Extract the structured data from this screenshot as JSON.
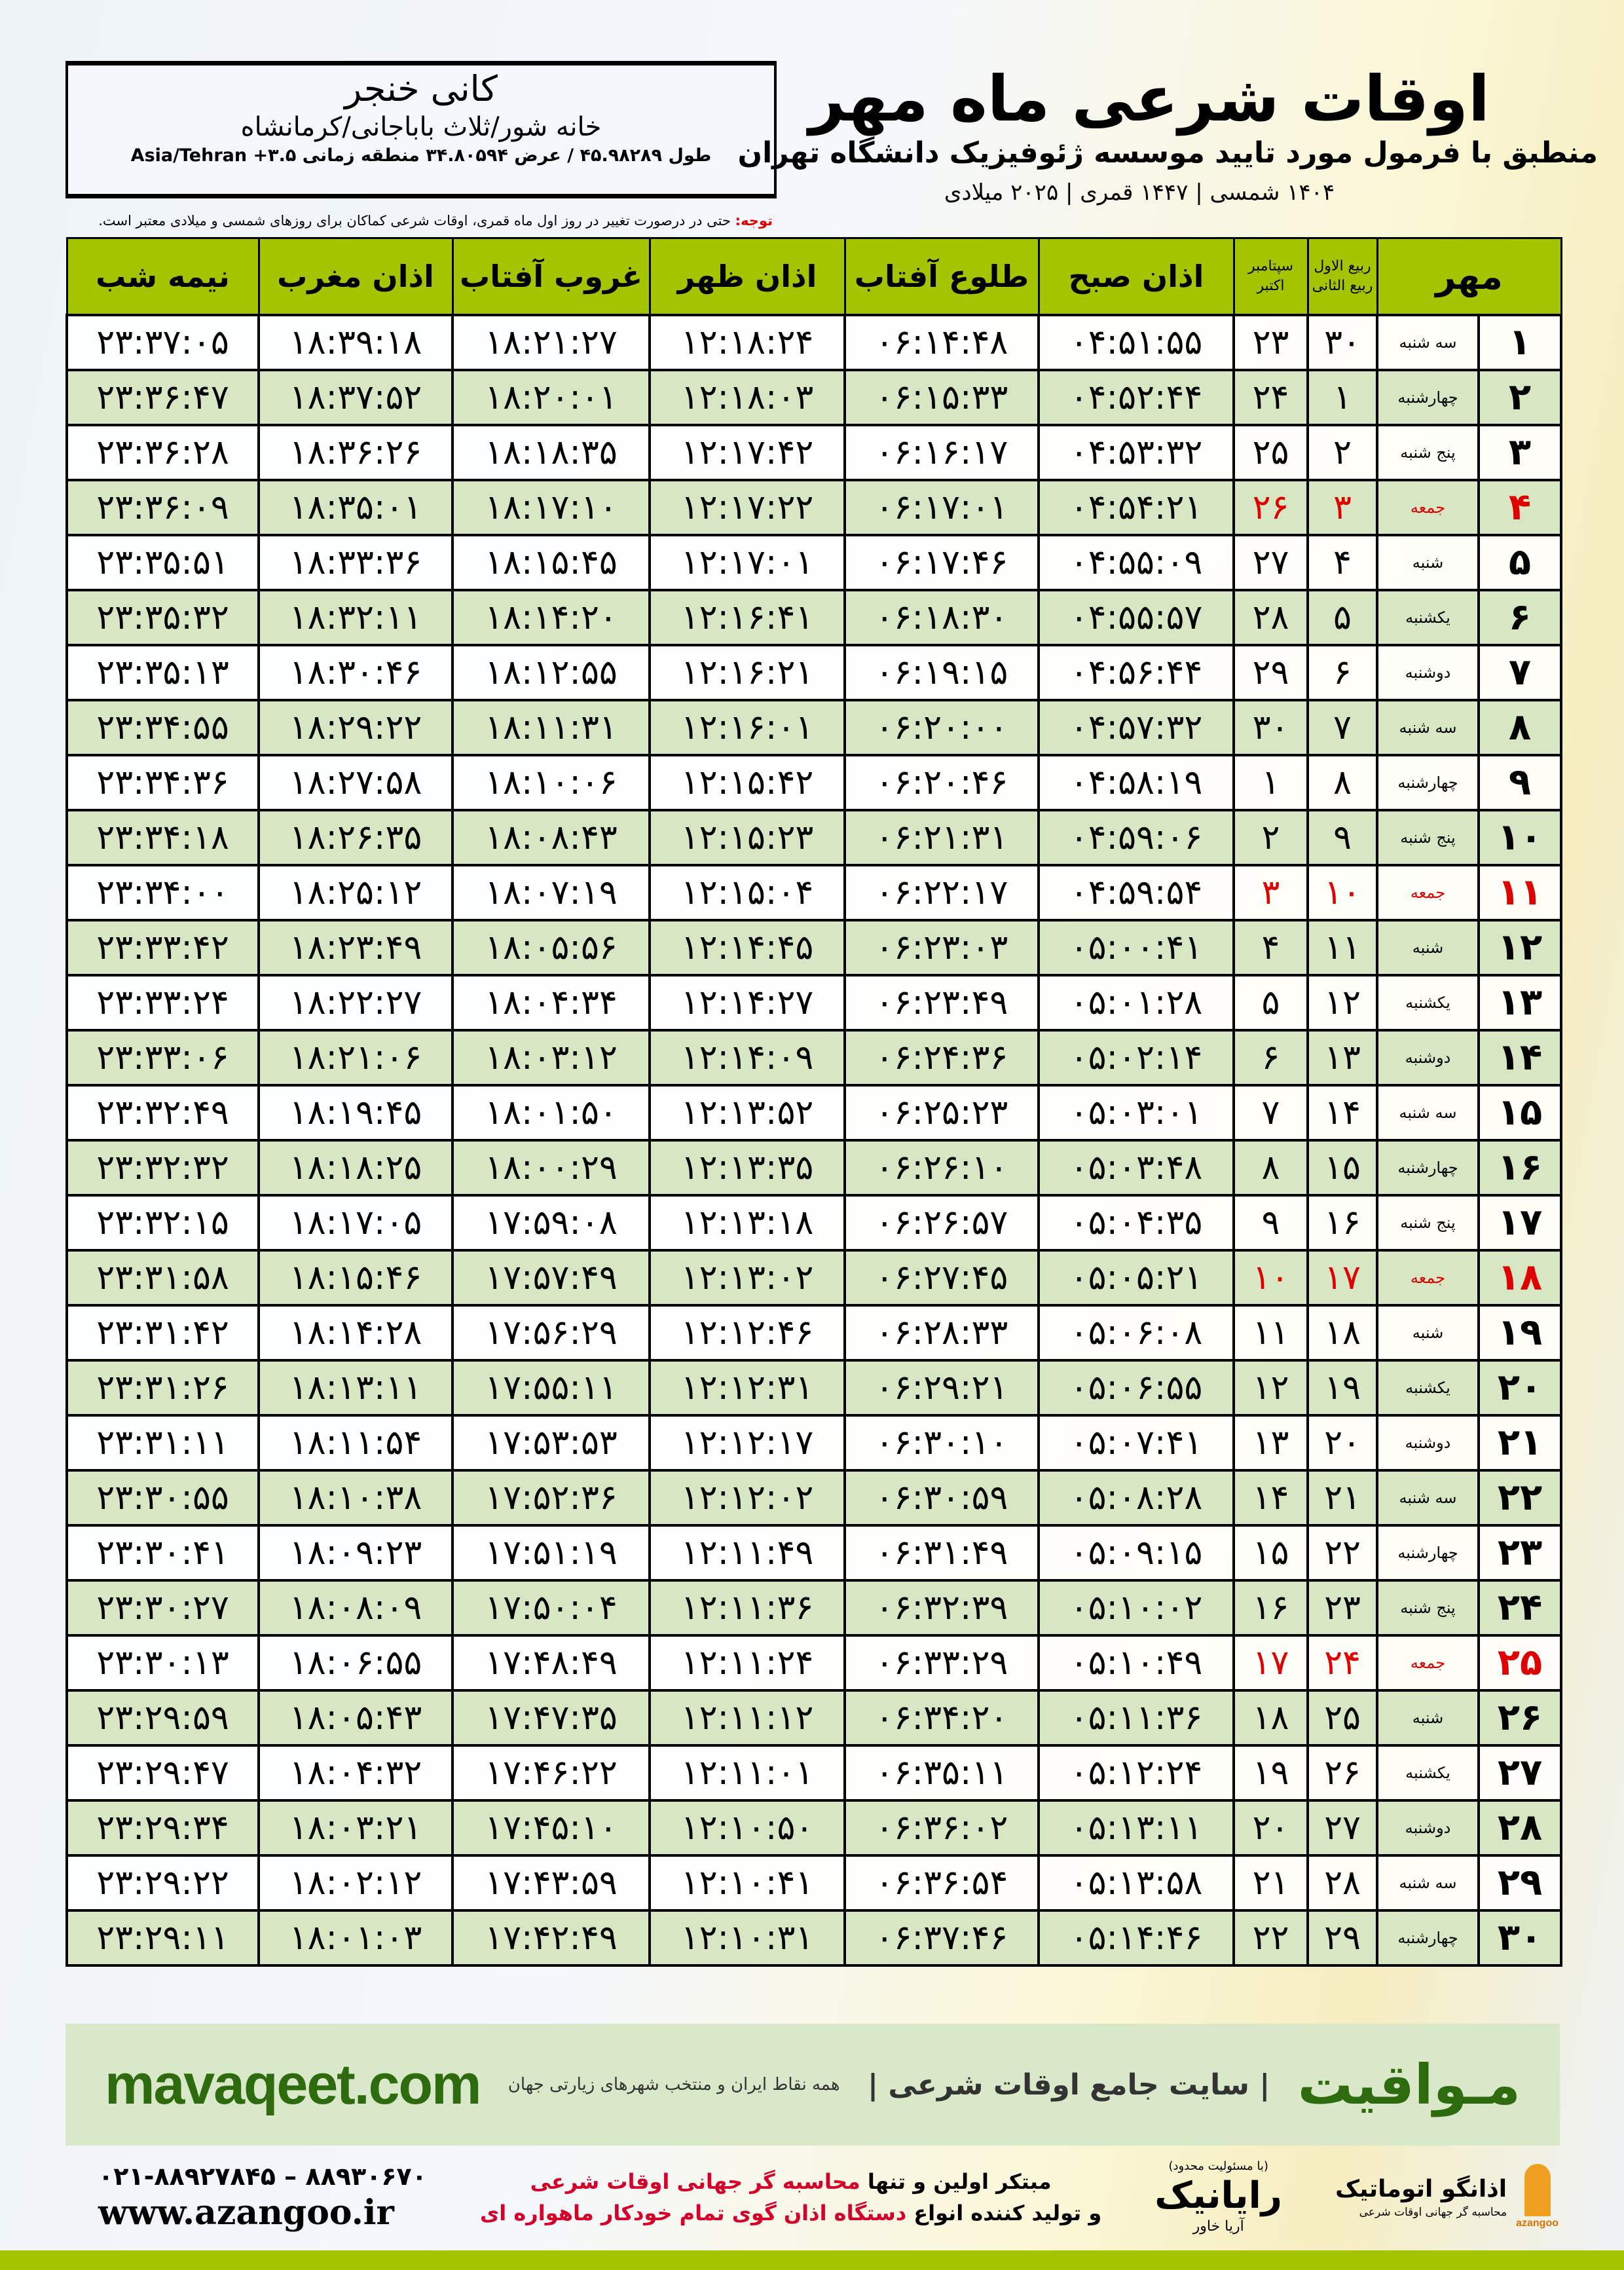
{
  "location": {
    "name": "کانی خنجر",
    "address": "خانه شور/ثلاث باباجانی/کرمانشاه",
    "coordinates": "طول ۴۵.۹۸۲۸۹ / عرض ۳۴.۸۰۵۹۴ منطقه زمانی Asia/Tehran +۳.۵"
  },
  "header": {
    "title": "اوقات شرعی ماه مهر",
    "subtitle": "منطبق با فرمول مورد تایید موسسه ژئوفیزیک دانشگاه تهران",
    "years": "۱۴۰۴ شمسی | ۱۴۴۷ قمری | ۲۰۲۵ میلادی"
  },
  "note": {
    "label": "توجه:",
    "text": " حتی در درصورت تغییر در روز اول ماه قمری، اوقات شرعی کماکان برای روزهای شمسی و میلادی معتبر است."
  },
  "table": {
    "columns": {
      "month": "مهر",
      "hijri_top": "ربیع الاول",
      "hijri_bottom": "ربیع الثانی",
      "greg_top": "سپتامبر",
      "greg_bottom": "اکتبر",
      "fajr": "اذان صبح",
      "sunrise": "طلوع آفتاب",
      "dhuhr": "اذان ظهر",
      "sunset": "غروب آفتاب",
      "maghrib": "اذان مغرب",
      "midnight": "نیمه شب"
    },
    "friday_color": "#e00000",
    "header_color": "#a4c400",
    "rows": [
      {
        "day": "۱",
        "weekday": "سه شنبه",
        "hijri": "۳۰",
        "greg": "۲۳",
        "fajr": "۰۴:۵۱:۵۵",
        "sunrise": "۰۶:۱۴:۴۸",
        "dhuhr": "۱۲:۱۸:۲۴",
        "sunset": "۱۸:۲۱:۲۷",
        "maghrib": "۱۸:۳۹:۱۸",
        "midnight": "۲۳:۳۷:۰۵",
        "friday": false
      },
      {
        "day": "۲",
        "weekday": "چهارشنبه",
        "hijri": "۱",
        "greg": "۲۴",
        "fajr": "۰۴:۵۲:۴۴",
        "sunrise": "۰۶:۱۵:۳۳",
        "dhuhr": "۱۲:۱۸:۰۳",
        "sunset": "۱۸:۲۰:۰۱",
        "maghrib": "۱۸:۳۷:۵۲",
        "midnight": "۲۳:۳۶:۴۷",
        "friday": false
      },
      {
        "day": "۳",
        "weekday": "پنج شنبه",
        "hijri": "۲",
        "greg": "۲۵",
        "fajr": "۰۴:۵۳:۳۲",
        "sunrise": "۰۶:۱۶:۱۷",
        "dhuhr": "۱۲:۱۷:۴۲",
        "sunset": "۱۸:۱۸:۳۵",
        "maghrib": "۱۸:۳۶:۲۶",
        "midnight": "۲۳:۳۶:۲۸",
        "friday": false
      },
      {
        "day": "۴",
        "weekday": "جمعه",
        "hijri": "۳",
        "greg": "۲۶",
        "fajr": "۰۴:۵۴:۲۱",
        "sunrise": "۰۶:۱۷:۰۱",
        "dhuhr": "۱۲:۱۷:۲۲",
        "sunset": "۱۸:۱۷:۱۰",
        "maghrib": "۱۸:۳۵:۰۱",
        "midnight": "۲۳:۳۶:۰۹",
        "friday": true
      },
      {
        "day": "۵",
        "weekday": "شنبه",
        "hijri": "۴",
        "greg": "۲۷",
        "fajr": "۰۴:۵۵:۰۹",
        "sunrise": "۰۶:۱۷:۴۶",
        "dhuhr": "۱۲:۱۷:۰۱",
        "sunset": "۱۸:۱۵:۴۵",
        "maghrib": "۱۸:۳۳:۳۶",
        "midnight": "۲۳:۳۵:۵۱",
        "friday": false
      },
      {
        "day": "۶",
        "weekday": "یکشنبه",
        "hijri": "۵",
        "greg": "۲۸",
        "fajr": "۰۴:۵۵:۵۷",
        "sunrise": "۰۶:۱۸:۳۰",
        "dhuhr": "۱۲:۱۶:۴۱",
        "sunset": "۱۸:۱۴:۲۰",
        "maghrib": "۱۸:۳۲:۱۱",
        "midnight": "۲۳:۳۵:۳۲",
        "friday": false
      },
      {
        "day": "۷",
        "weekday": "دوشنبه",
        "hijri": "۶",
        "greg": "۲۹",
        "fajr": "۰۴:۵۶:۴۴",
        "sunrise": "۰۶:۱۹:۱۵",
        "dhuhr": "۱۲:۱۶:۲۱",
        "sunset": "۱۸:۱۲:۵۵",
        "maghrib": "۱۸:۳۰:۴۶",
        "midnight": "۲۳:۳۵:۱۳",
        "friday": false
      },
      {
        "day": "۸",
        "weekday": "سه شنبه",
        "hijri": "۷",
        "greg": "۳۰",
        "fajr": "۰۴:۵۷:۳۲",
        "sunrise": "۰۶:۲۰:۰۰",
        "dhuhr": "۱۲:۱۶:۰۱",
        "sunset": "۱۸:۱۱:۳۱",
        "maghrib": "۱۸:۲۹:۲۲",
        "midnight": "۲۳:۳۴:۵۵",
        "friday": false
      },
      {
        "day": "۹",
        "weekday": "چهارشنبه",
        "hijri": "۸",
        "greg": "۱",
        "fajr": "۰۴:۵۸:۱۹",
        "sunrise": "۰۶:۲۰:۴۶",
        "dhuhr": "۱۲:۱۵:۴۲",
        "sunset": "۱۸:۱۰:۰۶",
        "maghrib": "۱۸:۲۷:۵۸",
        "midnight": "۲۳:۳۴:۳۶",
        "friday": false
      },
      {
        "day": "۱۰",
        "weekday": "پنج شنبه",
        "hijri": "۹",
        "greg": "۲",
        "fajr": "۰۴:۵۹:۰۶",
        "sunrise": "۰۶:۲۱:۳۱",
        "dhuhr": "۱۲:۱۵:۲۳",
        "sunset": "۱۸:۰۸:۴۳",
        "maghrib": "۱۸:۲۶:۳۵",
        "midnight": "۲۳:۳۴:۱۸",
        "friday": false
      },
      {
        "day": "۱۱",
        "weekday": "جمعه",
        "hijri": "۱۰",
        "greg": "۳",
        "fajr": "۰۴:۵۹:۵۴",
        "sunrise": "۰۶:۲۲:۱۷",
        "dhuhr": "۱۲:۱۵:۰۴",
        "sunset": "۱۸:۰۷:۱۹",
        "maghrib": "۱۸:۲۵:۱۲",
        "midnight": "۲۳:۳۴:۰۰",
        "friday": true
      },
      {
        "day": "۱۲",
        "weekday": "شنبه",
        "hijri": "۱۱",
        "greg": "۴",
        "fajr": "۰۵:۰۰:۴۱",
        "sunrise": "۰۶:۲۳:۰۳",
        "dhuhr": "۱۲:۱۴:۴۵",
        "sunset": "۱۸:۰۵:۵۶",
        "maghrib": "۱۸:۲۳:۴۹",
        "midnight": "۲۳:۳۳:۴۲",
        "friday": false
      },
      {
        "day": "۱۳",
        "weekday": "یکشنبه",
        "hijri": "۱۲",
        "greg": "۵",
        "fajr": "۰۵:۰۱:۲۸",
        "sunrise": "۰۶:۲۳:۴۹",
        "dhuhr": "۱۲:۱۴:۲۷",
        "sunset": "۱۸:۰۴:۳۴",
        "maghrib": "۱۸:۲۲:۲۷",
        "midnight": "۲۳:۳۳:۲۴",
        "friday": false
      },
      {
        "day": "۱۴",
        "weekday": "دوشنبه",
        "hijri": "۱۳",
        "greg": "۶",
        "fajr": "۰۵:۰۲:۱۴",
        "sunrise": "۰۶:۲۴:۳۶",
        "dhuhr": "۱۲:۱۴:۰۹",
        "sunset": "۱۸:۰۳:۱۲",
        "maghrib": "۱۸:۲۱:۰۶",
        "midnight": "۲۳:۳۳:۰۶",
        "friday": false
      },
      {
        "day": "۱۵",
        "weekday": "سه شنبه",
        "hijri": "۱۴",
        "greg": "۷",
        "fajr": "۰۵:۰۳:۰۱",
        "sunrise": "۰۶:۲۵:۲۳",
        "dhuhr": "۱۲:۱۳:۵۲",
        "sunset": "۱۸:۰۱:۵۰",
        "maghrib": "۱۸:۱۹:۴۵",
        "midnight": "۲۳:۳۲:۴۹",
        "friday": false
      },
      {
        "day": "۱۶",
        "weekday": "چهارشنبه",
        "hijri": "۱۵",
        "greg": "۸",
        "fajr": "۰۵:۰۳:۴۸",
        "sunrise": "۰۶:۲۶:۱۰",
        "dhuhr": "۱۲:۱۳:۳۵",
        "sunset": "۱۸:۰۰:۲۹",
        "maghrib": "۱۸:۱۸:۲۵",
        "midnight": "۲۳:۳۲:۳۲",
        "friday": false
      },
      {
        "day": "۱۷",
        "weekday": "پنج شنبه",
        "hijri": "۱۶",
        "greg": "۹",
        "fajr": "۰۵:۰۴:۳۵",
        "sunrise": "۰۶:۲۶:۵۷",
        "dhuhr": "۱۲:۱۳:۱۸",
        "sunset": "۱۷:۵۹:۰۸",
        "maghrib": "۱۸:۱۷:۰۵",
        "midnight": "۲۳:۳۲:۱۵",
        "friday": false
      },
      {
        "day": "۱۸",
        "weekday": "جمعه",
        "hijri": "۱۷",
        "greg": "۱۰",
        "fajr": "۰۵:۰۵:۲۱",
        "sunrise": "۰۶:۲۷:۴۵",
        "dhuhr": "۱۲:۱۳:۰۲",
        "sunset": "۱۷:۵۷:۴۹",
        "maghrib": "۱۸:۱۵:۴۶",
        "midnight": "۲۳:۳۱:۵۸",
        "friday": true
      },
      {
        "day": "۱۹",
        "weekday": "شنبه",
        "hijri": "۱۸",
        "greg": "۱۱",
        "fajr": "۰۵:۰۶:۰۸",
        "sunrise": "۰۶:۲۸:۳۳",
        "dhuhr": "۱۲:۱۲:۴۶",
        "sunset": "۱۷:۵۶:۲۹",
        "maghrib": "۱۸:۱۴:۲۸",
        "midnight": "۲۳:۳۱:۴۲",
        "friday": false
      },
      {
        "day": "۲۰",
        "weekday": "یکشنبه",
        "hijri": "۱۹",
        "greg": "۱۲",
        "fajr": "۰۵:۰۶:۵۵",
        "sunrise": "۰۶:۲۹:۲۱",
        "dhuhr": "۱۲:۱۲:۳۱",
        "sunset": "۱۷:۵۵:۱۱",
        "maghrib": "۱۸:۱۳:۱۱",
        "midnight": "۲۳:۳۱:۲۶",
        "friday": false
      },
      {
        "day": "۲۱",
        "weekday": "دوشنبه",
        "hijri": "۲۰",
        "greg": "۱۳",
        "fajr": "۰۵:۰۷:۴۱",
        "sunrise": "۰۶:۳۰:۱۰",
        "dhuhr": "۱۲:۱۲:۱۷",
        "sunset": "۱۷:۵۳:۵۳",
        "maghrib": "۱۸:۱۱:۵۴",
        "midnight": "۲۳:۳۱:۱۱",
        "friday": false
      },
      {
        "day": "۲۲",
        "weekday": "سه شنبه",
        "hijri": "۲۱",
        "greg": "۱۴",
        "fajr": "۰۵:۰۸:۲۸",
        "sunrise": "۰۶:۳۰:۵۹",
        "dhuhr": "۱۲:۱۲:۰۲",
        "sunset": "۱۷:۵۲:۳۶",
        "maghrib": "۱۸:۱۰:۳۸",
        "midnight": "۲۳:۳۰:۵۵",
        "friday": false
      },
      {
        "day": "۲۳",
        "weekday": "چهارشنبه",
        "hijri": "۲۲",
        "greg": "۱۵",
        "fajr": "۰۵:۰۹:۱۵",
        "sunrise": "۰۶:۳۱:۴۹",
        "dhuhr": "۱۲:۱۱:۴۹",
        "sunset": "۱۷:۵۱:۱۹",
        "maghrib": "۱۸:۰۹:۲۳",
        "midnight": "۲۳:۳۰:۴۱",
        "friday": false
      },
      {
        "day": "۲۴",
        "weekday": "پنج شنبه",
        "hijri": "۲۳",
        "greg": "۱۶",
        "fajr": "۰۵:۱۰:۰۲",
        "sunrise": "۰۶:۳۲:۳۹",
        "dhuhr": "۱۲:۱۱:۳۶",
        "sunset": "۱۷:۵۰:۰۴",
        "maghrib": "۱۸:۰۸:۰۹",
        "midnight": "۲۳:۳۰:۲۷",
        "friday": false
      },
      {
        "day": "۲۵",
        "weekday": "جمعه",
        "hijri": "۲۴",
        "greg": "۱۷",
        "fajr": "۰۵:۱۰:۴۹",
        "sunrise": "۰۶:۳۳:۲۹",
        "dhuhr": "۱۲:۱۱:۲۴",
        "sunset": "۱۷:۴۸:۴۹",
        "maghrib": "۱۸:۰۶:۵۵",
        "midnight": "۲۳:۳۰:۱۳",
        "friday": true
      },
      {
        "day": "۲۶",
        "weekday": "شنبه",
        "hijri": "۲۵",
        "greg": "۱۸",
        "fajr": "۰۵:۱۱:۳۶",
        "sunrise": "۰۶:۳۴:۲۰",
        "dhuhr": "۱۲:۱۱:۱۲",
        "sunset": "۱۷:۴۷:۳۵",
        "maghrib": "۱۸:۰۵:۴۳",
        "midnight": "۲۳:۲۹:۵۹",
        "friday": false
      },
      {
        "day": "۲۷",
        "weekday": "یکشنبه",
        "hijri": "۲۶",
        "greg": "۱۹",
        "fajr": "۰۵:۱۲:۲۴",
        "sunrise": "۰۶:۳۵:۱۱",
        "dhuhr": "۱۲:۱۱:۰۱",
        "sunset": "۱۷:۴۶:۲۲",
        "maghrib": "۱۸:۰۴:۳۲",
        "midnight": "۲۳:۲۹:۴۷",
        "friday": false
      },
      {
        "day": "۲۸",
        "weekday": "دوشنبه",
        "hijri": "۲۷",
        "greg": "۲۰",
        "fajr": "۰۵:۱۳:۱۱",
        "sunrise": "۰۶:۳۶:۰۲",
        "dhuhr": "۱۲:۱۰:۵۰",
        "sunset": "۱۷:۴۵:۱۰",
        "maghrib": "۱۸:۰۳:۲۱",
        "midnight": "۲۳:۲۹:۳۴",
        "friday": false
      },
      {
        "day": "۲۹",
        "weekday": "سه شنبه",
        "hijri": "۲۸",
        "greg": "۲۱",
        "fajr": "۰۵:۱۳:۵۸",
        "sunrise": "۰۶:۳۶:۵۴",
        "dhuhr": "۱۲:۱۰:۴۱",
        "sunset": "۱۷:۴۳:۵۹",
        "maghrib": "۱۸:۰۲:۱۲",
        "midnight": "۲۳:۲۹:۲۲",
        "friday": false
      },
      {
        "day": "۳۰",
        "weekday": "چهارشنبه",
        "hijri": "۲۹",
        "greg": "۲۲",
        "fajr": "۰۵:۱۴:۴۶",
        "sunrise": "۰۶:۳۷:۴۶",
        "dhuhr": "۱۲:۱۰:۳۱",
        "sunset": "۱۷:۴۲:۴۹",
        "maghrib": "۱۸:۰۱:۰۳",
        "midnight": "۲۳:۲۹:۱۱",
        "friday": false
      }
    ]
  },
  "banner": {
    "brand": "مـواقیت",
    "tagline": "| سایت جامع اوقات شرعی |",
    "tagline_small": "همه نقاط ایران و منتخب شهرهای زیارتی جهان",
    "site": "mavaqeet.com",
    "color": "#2e6b0e"
  },
  "footer": {
    "phones": "۰۲۱-۸۸۹۲۷۸۴۵ – ۸۸۹۳۰۶۷۰",
    "website": "www.azangoo.ir",
    "promo_line1_a": "مبتکر اولین و تنها ",
    "promo_line1_b": "محاسبه گر جهانی اوقات شرعی",
    "promo_line2_a": "و تولید کننده انواع ",
    "promo_line2_b": "دستگاه اذان گوی تمام خودکار ماهواره ای",
    "rayanik_small": "(با مسئولیت محدود)",
    "rayanik": "رایانیک",
    "rayanik_sub": "آریا خاور",
    "azangoo_title": "اذانگو اتوماتیک",
    "azangoo_sub": "محاسبه گر جهانی اوقات شرعی",
    "azangoo_latin": "azangoo"
  }
}
